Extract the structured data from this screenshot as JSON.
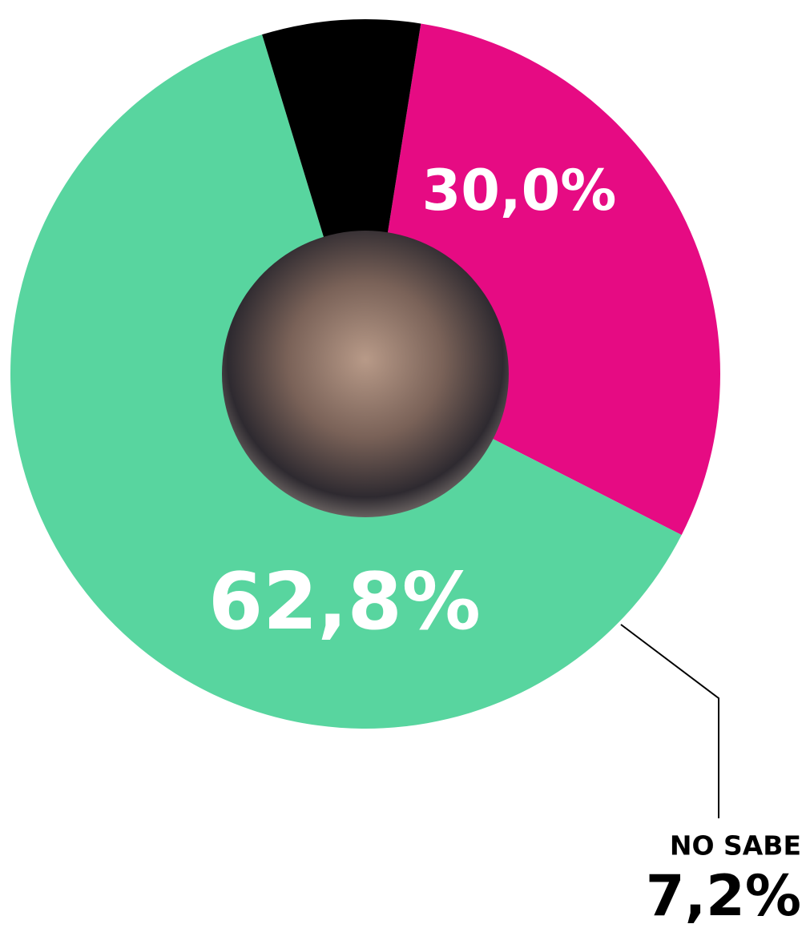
{
  "chart_data": {
    "type": "donut",
    "categories": [
      null,
      null,
      "NO SABE"
    ],
    "values": [
      30.0,
      62.8,
      7.2
    ],
    "value_labels": [
      "30,0%",
      "62,8%",
      "7,2%"
    ],
    "colors": [
      "#e60b83",
      "#58d59f",
      "#000000"
    ]
  }
}
